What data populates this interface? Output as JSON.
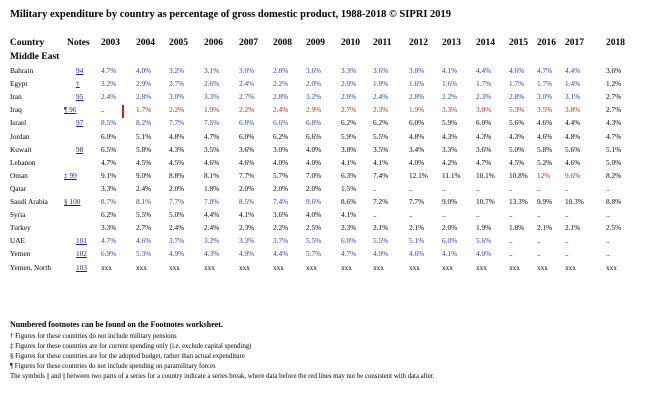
{
  "title": "Military expenditure by country as percentage of gross domestic product, 1988-2018 © SIPRI 2019",
  "header": {
    "country": "Country",
    "notes": "Notes",
    "years": [
      "2003",
      "2004",
      "2005",
      "2006",
      "2007",
      "2008",
      "2009",
      "2010",
      "2011",
      "2012",
      "2013",
      "2014",
      "2015",
      "2016",
      "2017",
      "2018"
    ]
  },
  "region": "Middle East",
  "rows": [
    {
      "country": "Bahrain",
      "note": "94",
      "values": [
        "4.7%",
        "4.0%",
        "3.2%",
        "3.1%",
        "3.0%",
        "2.8%",
        "3.6%",
        "3.3%",
        "3.6%",
        "3.8%",
        "4.1%",
        "4.4%",
        "4.6%",
        "4.7%",
        "4.4%",
        "3.6%"
      ]
    },
    {
      "country": "Egypt",
      "note": "†",
      "values": [
        "3.2%",
        "2.9%",
        "2.7%",
        "2.6%",
        "2.4%",
        "2.2%",
        "2.0%",
        "2.0%",
        "1.8%",
        "1.6%",
        "1.6%",
        "1.7%",
        "1.7%",
        "1.7%",
        "1.4%",
        "1.2%"
      ]
    },
    {
      "country": "Iran",
      "note": "95",
      "values": [
        "2.4%",
        "2.8%",
        "3.0%",
        "3.3%",
        "2.7%",
        "2.8%",
        "3.2%",
        "2.9%",
        "2.4%",
        "2.8%",
        "2.2%",
        "2.3%",
        "2.8%",
        "3.0%",
        "3.1%",
        "2.7%"
      ]
    },
    {
      "country": "Iraq",
      "note": "¶ 96",
      "values": [
        "..",
        "1.7%",
        "2.2%",
        "1.9%",
        "2.2%",
        "2.4%",
        "2.9%",
        "2.7%",
        "2.3%",
        "1.9%",
        "3.3%",
        "3.0%",
        "5.3%",
        "3.5%",
        "3.8%",
        "2.7%"
      ]
    },
    {
      "country": "Israel",
      "note": "97",
      "values": [
        "8.5%",
        "8.2%",
        "7.7%",
        "7.5%",
        "6.8%",
        "6.6%",
        "6.8%",
        "6.2%",
        "6.2%",
        "6.0%",
        "5.9%",
        "6.0%",
        "5.6%",
        "4.6%",
        "4.4%",
        "4.3%"
      ]
    },
    {
      "country": "Jordan",
      "note": "",
      "values": [
        "6.0%",
        "5.1%",
        "4.8%",
        "4.7%",
        "6.0%",
        "6.2%",
        "6.6%",
        "5.9%",
        "5.5%",
        "4.8%",
        "4.3%",
        "4.3%",
        "4.3%",
        "4.6%",
        "4.8%",
        "4.7%"
      ]
    },
    {
      "country": "Kuwait",
      "note": "98",
      "values": [
        "6.5%",
        "5.8%",
        "4.3%",
        "3.5%",
        "3.6%",
        "3.0%",
        "4.0%",
        "3.8%",
        "3.5%",
        "3.4%",
        "3.3%",
        "3.6%",
        "5.0%",
        "5.8%",
        "5.6%",
        "5.1%"
      ]
    },
    {
      "country": "Lebanon",
      "note": "",
      "values": [
        "4.7%",
        "4.5%",
        "4.5%",
        "4.6%",
        "4.6%",
        "4.0%",
        "4.0%",
        "4.1%",
        "4.1%",
        "4.0%",
        "4.2%",
        "4.7%",
        "4.5%",
        "5.2%",
        "4.6%",
        "5.0%"
      ]
    },
    {
      "country": "Oman",
      "note": "‡ 99",
      "values": [
        "9.1%",
        "9.0%",
        "8.8%",
        "8.1%",
        "7.7%",
        "5.7%",
        "7.0%",
        "6.3%",
        "7.4%",
        "12.1%",
        "11.1%",
        "10.1%",
        "10.8%",
        "12%",
        "9.6%",
        "8.2%"
      ]
    },
    {
      "country": "Qatar",
      "note": "",
      "values": [
        "3.3%",
        "2.4%",
        "2.0%",
        "1.8%",
        "2.0%",
        "2.0%",
        "2.0%",
        "1.5%",
        "..",
        "..",
        "..",
        "..",
        "..",
        "..",
        "..",
        ".."
      ]
    },
    {
      "country": "Saudi Arabia",
      "note": "§ 100",
      "values": [
        "8.7%",
        "8.1%",
        "7.7%",
        "7.8%",
        "8.5%",
        "7.4%",
        "9.6%",
        "8.6%",
        "7.2%",
        "7.7%",
        "9.0%",
        "10.7%",
        "13.3%",
        "9.9%",
        "10.3%",
        "8.8%"
      ]
    },
    {
      "country": "Syria",
      "note": "",
      "values": [
        "6.2%",
        "5.5%",
        "5.0%",
        "4.4%",
        "4.1%",
        "3.6%",
        "4.0%",
        "4.1%",
        "..",
        "..",
        "..",
        "..",
        "..",
        "..",
        "..",
        ".."
      ]
    },
    {
      "country": "Turkey",
      "note": "",
      "values": [
        "3.3%",
        "2.7%",
        "2.4%",
        "2.4%",
        "2.3%",
        "2.2%",
        "2.5%",
        "2.3%",
        "2.1%",
        "2.1%",
        "2.0%",
        "1.9%",
        "1.8%",
        "2.1%",
        "2.1%",
        "2.5%"
      ]
    },
    {
      "country": "UAE",
      "note": "101",
      "values": [
        "4.7%",
        "4.6%",
        "3.7%",
        "3.2%",
        "3.3%",
        "3.7%",
        "5.5%",
        "6.0%",
        "5.5%",
        "5.1%",
        "6.0%",
        "5.6%",
        "..",
        "..",
        "..",
        ".."
      ]
    },
    {
      "country": "Yemen",
      "note": "102",
      "values": [
        "6.9%",
        "5.3%",
        "4.9%",
        "4.3%",
        "4.9%",
        "4.4%",
        "5.7%",
        "4.7%",
        "4.9%",
        "4.6%",
        "4.1%",
        "4.0%",
        "..",
        "..",
        "..",
        ".."
      ]
    },
    {
      "country": "Yemen, North",
      "note": "103",
      "values": [
        "xxx",
        "xxx",
        "xxx",
        "xxx",
        "xxx",
        "xxx",
        "xxx",
        "xxx",
        "xxx",
        "xxx",
        "xxx",
        "xxx",
        "xxx",
        "xxx",
        "xxx",
        "xxx"
      ]
    }
  ],
  "footnotes": {
    "heading": "Numbered footnotes can be found on the Footnotes worksheet.",
    "lines": [
      "† Figures for these countries do not include military pensions",
      "‡ Figures for these countries are for current spending only (i.e. exclude capital spending)",
      "§ Figures for these countries are for the adopted budget, rather than actual expenditure",
      "¶ Figures for these countries do not include spending on paramilitary forces",
      "The symbols || and || between two parts of a series for a country indicate a series break, where data before the red lines may not be consistent with data after."
    ]
  },
  "colors": {
    "blue": "#2b3dbf",
    "red": "#d21b1b",
    "link": "#1a1aa8"
  }
}
